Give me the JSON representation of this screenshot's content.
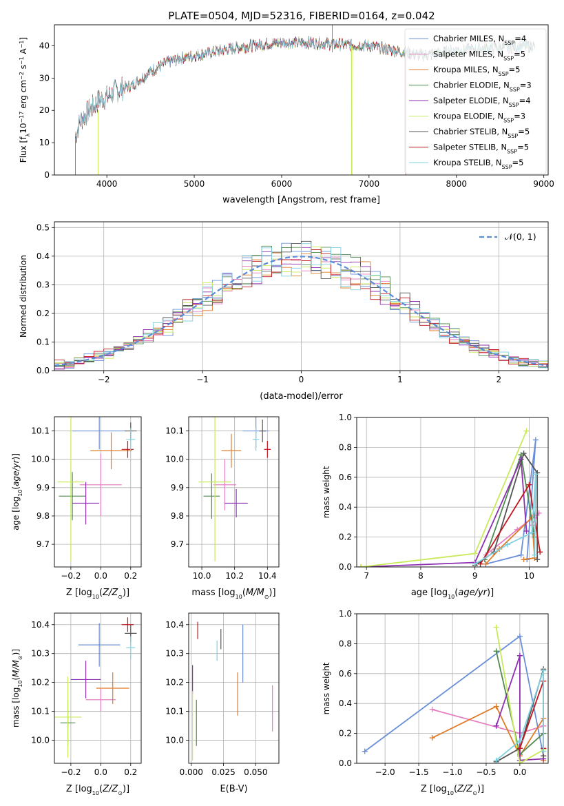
{
  "colors": {
    "MILES_Chabrier": "#6a8fd8",
    "MILES_Salpeter": "#e67fc0",
    "MILES_Kroupa": "#e07b28",
    "ELODIE_Chabrier": "#4f8a4f",
    "ELODIE_Salpeter": "#8d2fb0",
    "ELODIE_Kroupa": "#c9ea58",
    "STELIB_Chabrier": "#555555",
    "STELIB_Salpeter": "#c0171e",
    "STELIB_Kroupa": "#7fd0e0"
  },
  "chart_data": [
    {
      "id": "spectrum",
      "type": "line",
      "title": "PLATE=0504, MJD=52316, FIBERID=0164, z=0.042",
      "xlabel": "wavelength [Angstrom, rest frame]",
      "ylabel": "Flux [f_λ10^-17 erg cm^-2 s^-1 A^-1]",
      "xlim": [
        3400,
        9050
      ],
      "ylim": [
        0,
        46.5
      ],
      "xticks": [
        4000,
        5000,
        6000,
        7000,
        8000,
        9000
      ],
      "yticks": [
        0,
        10,
        20,
        30,
        40
      ],
      "legend_position": "top-right",
      "legend": [
        {
          "model": "Chabrier MILES",
          "nssp": 4,
          "color_key": "MILES_Chabrier"
        },
        {
          "model": "Salpeter MILES",
          "nssp": 5,
          "color_key": "MILES_Salpeter"
        },
        {
          "model": "Kroupa MILES",
          "nssp": 5,
          "color_key": "MILES_Kroupa"
        },
        {
          "model": "Chabrier ELODIE",
          "nssp": 3,
          "color_key": "ELODIE_Chabrier"
        },
        {
          "model": "Salpeter ELODIE",
          "nssp": 4,
          "color_key": "ELODIE_Salpeter"
        },
        {
          "model": "Kroupa ELODIE",
          "nssp": 3,
          "color_key": "ELODIE_Kroupa"
        },
        {
          "model": "Chabrier STELIB",
          "nssp": 5,
          "color_key": "STELIB_Chabrier"
        },
        {
          "model": "Salpeter STELIB",
          "nssp": 5,
          "color_key": "STELIB_Salpeter"
        },
        {
          "model": "Kroupa STELIB",
          "nssp": 5,
          "color_key": "STELIB_Kroupa"
        }
      ],
      "continuum": [
        [
          3640,
          12
        ],
        [
          3700,
          17
        ],
        [
          3800,
          20
        ],
        [
          3900,
          23
        ],
        [
          4000,
          24
        ],
        [
          4100,
          26
        ],
        [
          4200,
          27
        ],
        [
          4300,
          28
        ],
        [
          4500,
          32
        ],
        [
          4700,
          35
        ],
        [
          4900,
          36.5
        ],
        [
          5100,
          37.5
        ],
        [
          5300,
          38.5
        ],
        [
          5500,
          39.5
        ],
        [
          5800,
          40.5
        ],
        [
          6000,
          41
        ],
        [
          6300,
          41
        ],
        [
          6600,
          40.5
        ],
        [
          7000,
          40
        ],
        [
          7400,
          38
        ],
        [
          7600,
          37
        ],
        [
          8000,
          38.5
        ],
        [
          8500,
          39.5
        ],
        [
          8900,
          40
        ]
      ]
    },
    {
      "id": "residuals",
      "type": "histogram",
      "xlabel": "(data-model)/error",
      "ylabel": "Normed distribution",
      "xlim": [
        -2.5,
        2.5
      ],
      "ylim": [
        0,
        0.52
      ],
      "xticks": [
        -2,
        -1,
        0,
        1,
        2
      ],
      "yticks": [
        0.0,
        0.1,
        0.2,
        0.3,
        0.4,
        0.5
      ],
      "grid": true,
      "legend_position": "top-right",
      "legend": [
        {
          "label": "𝒩(0, 1)",
          "style": "dashed",
          "color": "#5b8bd6"
        }
      ]
    },
    {
      "id": "age_vs_Z",
      "type": "errorbar",
      "xlabel": "Z [log10(Z/Z⊙)]",
      "ylabel": "age [log10(age/yr)]",
      "xlim": [
        -0.31,
        0.27
      ],
      "ylim": [
        9.62,
        10.15
      ],
      "xticks": [
        -0.2,
        0.0,
        0.2
      ],
      "yticks": [
        9.7,
        9.8,
        9.9,
        10.0,
        10.1
      ],
      "grid": true,
      "points": [
        {
          "color_key": "MILES_Chabrier",
          "x": -0.01,
          "xerr": 0.18,
          "y": 10.1,
          "yerr": 0.065
        },
        {
          "color_key": "MILES_Salpeter",
          "x": 0.0,
          "xerr": 0.14,
          "y": 9.91,
          "yerr": 0.11
        },
        {
          "color_key": "MILES_Kroupa",
          "x": 0.07,
          "xerr": 0.14,
          "y": 10.03,
          "yerr": 0.065
        },
        {
          "color_key": "ELODIE_Chabrier",
          "x": -0.19,
          "xerr": 0.09,
          "y": 9.87,
          "yerr": 0.085
        },
        {
          "color_key": "ELODIE_Salpeter",
          "x": -0.1,
          "xerr": 0.09,
          "y": 9.845,
          "yerr": 0.075
        },
        {
          "color_key": "ELODIE_Kroupa",
          "x": -0.2,
          "xerr": 0.09,
          "y": 9.92,
          "yerr": 0.28
        },
        {
          "color_key": "STELIB_Chabrier",
          "x": 0.2,
          "xerr": 0.04,
          "y": 10.1,
          "yerr": 0.03
        },
        {
          "color_key": "STELIB_Salpeter",
          "x": 0.18,
          "xerr": 0.04,
          "y": 10.035,
          "yerr": 0.03
        },
        {
          "color_key": "STELIB_Kroupa",
          "x": 0.2,
          "xerr": 0.03,
          "y": 10.07,
          "yerr": 0.04
        }
      ]
    },
    {
      "id": "age_vs_mass",
      "type": "errorbar",
      "xlabel": "mass [log10(M/M⊙)]",
      "ylabel": "",
      "xlim": [
        9.92,
        10.47
      ],
      "ylim": [
        9.62,
        10.15
      ],
      "xticks": [
        10.0,
        10.2,
        10.4
      ],
      "yticks": [
        9.7,
        9.8,
        9.9,
        10.0,
        10.1
      ],
      "grid": true,
      "points": [
        {
          "color_key": "MILES_Chabrier",
          "x": 10.33,
          "xerr": 0.08,
          "y": 10.1,
          "yerr": 0.06
        },
        {
          "color_key": "MILES_Salpeter",
          "x": 10.14,
          "xerr": 0.07,
          "y": 9.91,
          "yerr": 0.09
        },
        {
          "color_key": "MILES_Kroupa",
          "x": 10.18,
          "xerr": 0.06,
          "y": 10.03,
          "yerr": 0.06
        },
        {
          "color_key": "ELODIE_Chabrier",
          "x": 10.06,
          "xerr": 0.05,
          "y": 9.87,
          "yerr": 0.08
        },
        {
          "color_key": "ELODIE_Salpeter",
          "x": 10.21,
          "xerr": 0.07,
          "y": 9.845,
          "yerr": 0.05
        },
        {
          "color_key": "ELODIE_Kroupa",
          "x": 10.08,
          "xerr": 0.1,
          "y": 9.92,
          "yerr": 0.28
        },
        {
          "color_key": "STELIB_Chabrier",
          "x": 10.37,
          "xerr": 0.02,
          "y": 10.1,
          "yerr": 0.04
        },
        {
          "color_key": "STELIB_Salpeter",
          "x": 10.4,
          "xerr": 0.02,
          "y": 10.035,
          "yerr": 0.03
        },
        {
          "color_key": "STELIB_Kroupa",
          "x": 10.33,
          "xerr": 0.02,
          "y": 10.07,
          "yerr": 0.04
        }
      ]
    },
    {
      "id": "weight_vs_age",
      "type": "line",
      "xlabel": "age [log10(age/yr)]",
      "ylabel": "mass weight",
      "xlim": [
        6.82,
        10.35
      ],
      "ylim": [
        0,
        1.0
      ],
      "xticks": [
        7,
        8,
        9,
        10
      ],
      "yticks": [
        0.0,
        0.2,
        0.4,
        0.6,
        0.8,
        1.0
      ],
      "grid": true,
      "series": [
        {
          "color_key": "MILES_Chabrier",
          "points": [
            [
              9.2,
              0.02
            ],
            [
              9.85,
              0.08
            ],
            [
              10.12,
              0.85
            ],
            [
              9.96,
              0.05
            ]
          ]
        },
        {
          "color_key": "MILES_Salpeter",
          "points": [
            [
              9.2,
              0.08
            ],
            [
              9.78,
              0.25
            ],
            [
              10.18,
              0.36
            ],
            [
              10.05,
              0.28
            ]
          ]
        },
        {
          "color_key": "MILES_Kroupa",
          "points": [
            [
              9.2,
              0.02
            ],
            [
              9.45,
              0.12
            ],
            [
              10.05,
              0.33
            ],
            [
              10.1,
              0.06
            ],
            [
              9.9,
              0.05
            ]
          ]
        },
        {
          "color_key": "ELODIE_Chabrier",
          "points": [
            [
              9.18,
              0.05
            ],
            [
              9.85,
              0.75
            ],
            [
              10.1,
              0.2
            ]
          ]
        },
        {
          "color_key": "ELODIE_Salpeter",
          "points": [
            [
              6.9,
              0.0
            ],
            [
              9.0,
              0.03
            ],
            [
              9.85,
              0.72
            ],
            [
              9.95,
              0.24
            ]
          ]
        },
        {
          "color_key": "ELODIE_Kroupa",
          "points": [
            [
              6.9,
              0.0
            ],
            [
              9.0,
              0.09
            ],
            [
              9.95,
              0.91
            ]
          ]
        },
        {
          "color_key": "STELIB_Chabrier",
          "points": [
            [
              9.0,
              0.01
            ],
            [
              9.35,
              0.1
            ],
            [
              9.9,
              0.76
            ],
            [
              10.15,
              0.63
            ],
            [
              10.15,
              0.05
            ]
          ]
        },
        {
          "color_key": "STELIB_Salpeter",
          "points": [
            [
              9.1,
              0.02
            ],
            [
              10.0,
              0.55
            ],
            [
              10.2,
              0.1
            ]
          ]
        },
        {
          "color_key": "STELIB_Kroupa",
          "points": [
            [
              9.0,
              0.02
            ],
            [
              9.6,
              0.15
            ],
            [
              10.05,
              0.23
            ],
            [
              10.12,
              0.62
            ],
            [
              10.1,
              0.08
            ]
          ]
        }
      ]
    },
    {
      "id": "mass_vs_Z",
      "type": "errorbar",
      "xlabel": "Z [log10(Z/Z⊙)]",
      "ylabel": "mass [log10(M/M⊙)]",
      "xlim": [
        -0.31,
        0.27
      ],
      "ylim": [
        9.92,
        10.44
      ],
      "xticks": [
        -0.2,
        0.0,
        0.2
      ],
      "yticks": [
        10.0,
        10.1,
        10.2,
        10.3,
        10.4
      ],
      "grid": true,
      "points": [
        {
          "color_key": "MILES_Chabrier",
          "x": -0.01,
          "xerr": 0.14,
          "y": 10.33,
          "yerr": 0.075
        },
        {
          "color_key": "MILES_Salpeter",
          "x": 0.0,
          "xerr": 0.1,
          "y": 10.14,
          "yerr": 0.04
        },
        {
          "color_key": "MILES_Kroupa",
          "x": 0.08,
          "xerr": 0.11,
          "y": 10.18,
          "yerr": 0.055
        },
        {
          "color_key": "ELODIE_Chabrier",
          "x": -0.22,
          "xerr": 0.05,
          "y": 10.06,
          "yerr": 0.08
        },
        {
          "color_key": "ELODIE_Salpeter",
          "x": -0.1,
          "xerr": 0.1,
          "y": 10.21,
          "yerr": 0.065
        },
        {
          "color_key": "ELODIE_Kroupa",
          "x": -0.22,
          "xerr": 0.09,
          "y": 10.08,
          "yerr": 0.14
        },
        {
          "color_key": "STELIB_Chabrier",
          "x": 0.2,
          "xerr": 0.04,
          "y": 10.37,
          "yerr": 0.03
        },
        {
          "color_key": "STELIB_Salpeter",
          "x": 0.18,
          "xerr": 0.04,
          "y": 10.4,
          "yerr": 0.025
        },
        {
          "color_key": "STELIB_Kroupa",
          "x": 0.2,
          "xerr": 0.03,
          "y": 10.32,
          "yerr": 0.04
        }
      ]
    },
    {
      "id": "mass_vs_ebv",
      "type": "errorbar",
      "xlabel": "E(B-V)",
      "ylabel": "",
      "xlim": [
        -0.002,
        0.068
      ],
      "ylim": [
        9.92,
        10.44
      ],
      "xticks": [
        0.0,
        0.025,
        0.05
      ],
      "xticklabels": [
        "0.000",
        "0.025",
        "0.050"
      ],
      "yticks": [
        10.0,
        10.1,
        10.2,
        10.3,
        10.4
      ],
      "grid": true,
      "points": [
        {
          "color_key": "MILES_Chabrier",
          "x": 0.04,
          "xerr": 0,
          "y": 10.3,
          "yerr": 0.1
        },
        {
          "color_key": "MILES_Salpeter",
          "x": 0.063,
          "xerr": 0,
          "y": 10.11,
          "yerr": 0.08
        },
        {
          "color_key": "MILES_Kroupa",
          "x": 0.036,
          "xerr": 0,
          "y": 10.16,
          "yerr": 0.075
        },
        {
          "color_key": "ELODIE_Chabrier",
          "x": 0.004,
          "xerr": 0,
          "y": 10.06,
          "yerr": 0.08
        },
        {
          "color_key": "ELODIE_Salpeter",
          "x": 0.001,
          "xerr": 0,
          "y": 10.21,
          "yerr": 0.05
        },
        {
          "color_key": "ELODIE_Kroupa",
          "x": 0.001,
          "xerr": 0,
          "y": 10.05,
          "yerr": 0.12
        },
        {
          "color_key": "STELIB_Chabrier",
          "x": 0.023,
          "xerr": 0,
          "y": 10.35,
          "yerr": 0.035
        },
        {
          "color_key": "STELIB_Salpeter",
          "x": 0.005,
          "xerr": 0,
          "y": 10.38,
          "yerr": 0.03
        },
        {
          "color_key": "STELIB_Kroupa",
          "x": 0.02,
          "xerr": 0,
          "y": 10.31,
          "yerr": 0.035
        }
      ]
    },
    {
      "id": "weight_vs_Z",
      "type": "line",
      "xlabel": "Z [log10(Z/Z⊙)]",
      "ylabel": "mass weight",
      "xlim": [
        -2.42,
        0.42
      ],
      "ylim": [
        0,
        1.0
      ],
      "xticks": [
        -2.0,
        -1.5,
        -1.0,
        -0.5,
        0.0
      ],
      "yticks": [
        0.0,
        0.2,
        0.4,
        0.6,
        0.8,
        1.0
      ],
      "grid": true,
      "series": [
        {
          "color_key": "MILES_Chabrier",
          "points": [
            [
              -2.3,
              0.08
            ],
            [
              0.0,
              0.85
            ],
            [
              0.35,
              0.05
            ]
          ]
        },
        {
          "color_key": "MILES_Salpeter",
          "points": [
            [
              -1.3,
              0.36
            ],
            [
              0.0,
              0.2
            ],
            [
              0.35,
              0.25
            ],
            [
              0.35,
              0.05
            ]
          ]
        },
        {
          "color_key": "MILES_Kroupa",
          "points": [
            [
              -1.3,
              0.17
            ],
            [
              -0.35,
              0.38
            ],
            [
              0.0,
              0.05
            ],
            [
              0.35,
              0.3
            ],
            [
              0.35,
              0.02
            ]
          ]
        },
        {
          "color_key": "ELODIE_Chabrier",
          "points": [
            [
              -0.35,
              0.75
            ],
            [
              0.0,
              0.06
            ],
            [
              0.35,
              0.2
            ]
          ]
        },
        {
          "color_key": "ELODIE_Salpeter",
          "points": [
            [
              -0.35,
              0.25
            ],
            [
              0.0,
              0.72
            ],
            [
              0.0,
              0.02
            ],
            [
              0.35,
              0.03
            ]
          ]
        },
        {
          "color_key": "ELODIE_Kroupa",
          "points": [
            [
              -0.35,
              0.91
            ],
            [
              0.0,
              0.0
            ],
            [
              0.35,
              0.09
            ]
          ]
        },
        {
          "color_key": "STELIB_Chabrier",
          "points": [
            [
              -0.35,
              0.01
            ],
            [
              0.0,
              0.1
            ],
            [
              0.35,
              0.63
            ],
            [
              0.35,
              0.05
            ]
          ]
        },
        {
          "color_key": "STELIB_Salpeter",
          "points": [
            [
              0.0,
              0.1
            ],
            [
              0.35,
              0.55
            ],
            [
              0.35,
              0.1
            ]
          ]
        },
        {
          "color_key": "STELIB_Kroupa",
          "points": [
            [
              -0.35,
              0.02
            ],
            [
              0.0,
              0.15
            ],
            [
              0.35,
              0.62
            ],
            [
              0.35,
              0.08
            ]
          ]
        }
      ]
    }
  ]
}
